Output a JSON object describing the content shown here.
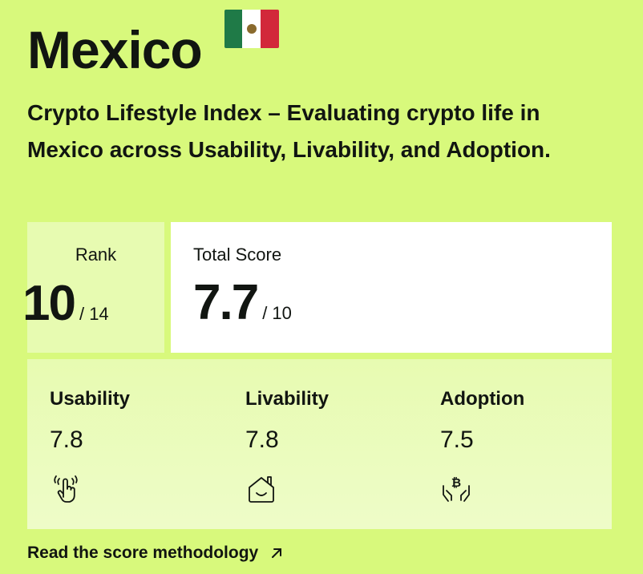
{
  "header": {
    "country": "Mexico",
    "flag_icon": "mexico-flag-icon"
  },
  "subtitle": "Crypto Lifestyle Index – Evaluating crypto life in Mexico across Usability, Livability, and Adoption.",
  "rank": {
    "label": "Rank",
    "value": "10",
    "out_of": "/ 14"
  },
  "total_score": {
    "label": "Total Score",
    "value": "7.7",
    "out_of": "/ 10"
  },
  "metrics": [
    {
      "name": "Usability",
      "score": "7.8",
      "icon": "touch-hand-icon"
    },
    {
      "name": "Livability",
      "score": "7.8",
      "icon": "smiling-house-icon"
    },
    {
      "name": "Adoption",
      "score": "7.5",
      "icon": "bitcoin-hands-icon"
    }
  ],
  "footer": {
    "link_label": "Read the score methodology",
    "icon": "arrow-up-right-icon"
  }
}
